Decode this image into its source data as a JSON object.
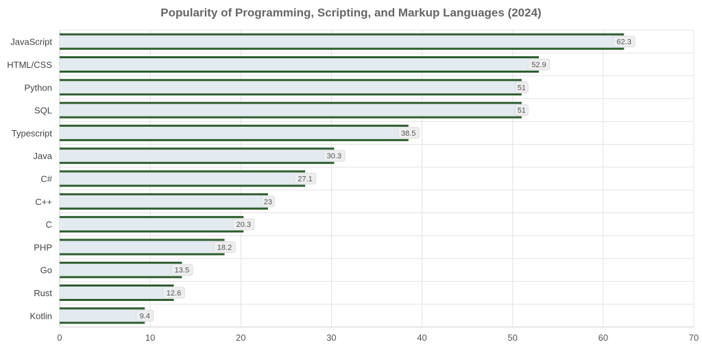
{
  "chart_data": {
    "type": "bar",
    "orientation": "horizontal",
    "title": "Popularity of Programming, Scripting, and Markup Languages (2024)",
    "categories": [
      "JavaScript",
      "HTML/CSS",
      "Python",
      "SQL",
      "Typescript",
      "Java",
      "C#",
      "C++",
      "C",
      "PHP",
      "Go",
      "Rust",
      "Kotlin"
    ],
    "values": [
      62.3,
      52.9,
      51,
      51,
      38.5,
      30.3,
      27.1,
      23,
      20.3,
      18.2,
      13.5,
      12.6,
      9.4
    ],
    "data_labels": [
      "62.3",
      "52.9",
      "51",
      "51",
      "38.5",
      "30.3",
      "27.1",
      "23",
      "20.3",
      "18.2",
      "13.5",
      "12.6",
      "9.4"
    ],
    "xlim": [
      0,
      70
    ],
    "x_ticks": [
      "0",
      "10",
      "20",
      "30",
      "40",
      "50",
      "60",
      "70"
    ],
    "xlabel": "",
    "ylabel": "",
    "grid": true,
    "legend": "none",
    "colors": {
      "bar_fill": "#e3eaf0",
      "bar_stroke": "#2f5f2f",
      "grid": "#e2e2e2",
      "axis": "#cccccc",
      "label_bg": "#eeeeee"
    }
  }
}
